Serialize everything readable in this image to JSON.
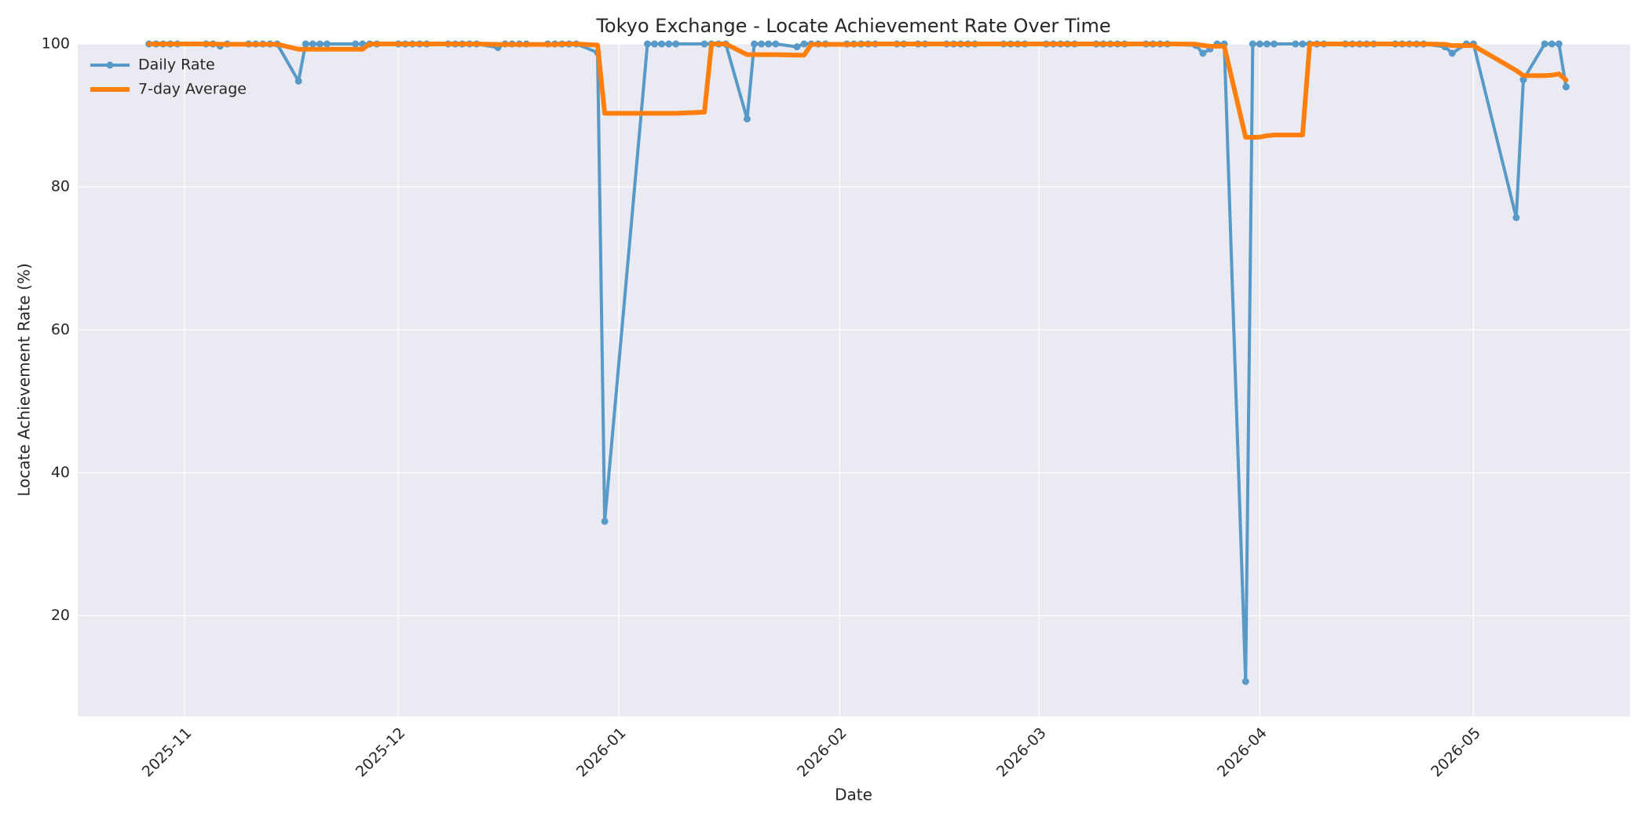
{
  "chart_data": {
    "type": "line",
    "title": "Tokyo Exchange - Locate Achievement Rate Over Time",
    "x_label": "Date",
    "y_label": "Locate Achievement Rate (%)",
    "x": [
      "2025-10-27",
      "2025-10-28",
      "2025-10-29",
      "2025-10-30",
      "2025-10-31",
      "2025-11-04",
      "2025-11-05",
      "2025-11-06",
      "2025-11-07",
      "2025-11-10",
      "2025-11-11",
      "2025-11-12",
      "2025-11-13",
      "2025-11-14",
      "2025-11-17",
      "2025-11-18",
      "2025-11-19",
      "2025-11-20",
      "2025-11-21",
      "2025-11-25",
      "2025-11-26",
      "2025-11-27",
      "2025-11-28",
      "2025-12-01",
      "2025-12-02",
      "2025-12-03",
      "2025-12-04",
      "2025-12-05",
      "2025-12-08",
      "2025-12-09",
      "2025-12-10",
      "2025-12-11",
      "2025-12-12",
      "2025-12-15",
      "2025-12-16",
      "2025-12-17",
      "2025-12-18",
      "2025-12-19",
      "2025-12-22",
      "2025-12-23",
      "2025-12-24",
      "2025-12-25",
      "2025-12-26",
      "2025-12-29",
      "2025-12-30",
      "2026-01-05",
      "2026-01-06",
      "2026-01-07",
      "2026-01-08",
      "2026-01-09",
      "2026-01-13",
      "2026-01-14",
      "2026-01-15",
      "2026-01-16",
      "2026-01-19",
      "2026-01-20",
      "2026-01-21",
      "2026-01-22",
      "2026-01-23",
      "2026-01-26",
      "2026-01-27",
      "2026-01-28",
      "2026-01-29",
      "2026-01-30",
      "2026-02-02",
      "2026-02-03",
      "2026-02-04",
      "2026-02-05",
      "2026-02-06",
      "2026-02-09",
      "2026-02-10",
      "2026-02-12",
      "2026-02-13",
      "2026-02-16",
      "2026-02-17",
      "2026-02-18",
      "2026-02-19",
      "2026-02-20",
      "2026-02-24",
      "2026-02-25",
      "2026-02-26",
      "2026-02-27",
      "2026-03-02",
      "2026-03-03",
      "2026-03-04",
      "2026-03-05",
      "2026-03-06",
      "2026-03-09",
      "2026-03-10",
      "2026-03-11",
      "2026-03-12",
      "2026-03-13",
      "2026-03-16",
      "2026-03-17",
      "2026-03-18",
      "2026-03-19",
      "2026-03-23",
      "2026-03-24",
      "2026-03-25",
      "2026-03-26",
      "2026-03-27",
      "2026-03-30",
      "2026-03-31",
      "2026-04-01",
      "2026-04-02",
      "2026-04-03",
      "2026-04-06",
      "2026-04-07",
      "2026-04-08",
      "2026-04-09",
      "2026-04-10",
      "2026-04-13",
      "2026-04-14",
      "2026-04-15",
      "2026-04-16",
      "2026-04-17",
      "2026-04-20",
      "2026-04-21",
      "2026-04-22",
      "2026-04-23",
      "2026-04-24",
      "2026-04-27",
      "2026-04-28",
      "2026-04-30",
      "2026-05-01",
      "2026-05-07",
      "2026-05-08",
      "2026-05-11",
      "2026-05-12",
      "2026-05-13",
      "2026-05-14"
    ],
    "series": [
      {
        "name": "Daily Rate",
        "color": "#5799c7",
        "markers": true,
        "values": [
          100,
          100,
          100,
          100,
          100,
          100,
          100,
          99.7,
          100,
          100,
          100,
          100,
          100,
          100,
          94.8,
          100,
          100,
          100,
          100,
          100,
          100,
          100,
          100,
          100,
          100,
          100,
          100,
          100,
          100,
          100,
          100,
          100,
          100,
          99.5,
          100,
          100,
          100,
          100,
          100,
          100,
          100,
          100,
          100,
          98.8,
          33.2,
          100,
          100,
          100,
          100,
          100,
          100,
          100,
          100,
          100,
          89.5,
          100,
          100,
          100,
          100,
          99.6,
          100,
          100,
          100,
          100,
          100,
          100,
          100,
          100,
          100,
          100,
          100,
          100,
          100,
          100,
          100,
          100,
          100,
          100,
          100,
          100,
          100,
          100,
          100,
          100,
          100,
          100,
          100,
          100,
          100,
          100,
          100,
          100,
          100,
          100,
          100,
          100,
          99.8,
          98.7,
          99.3,
          100,
          100,
          10.8,
          100,
          100,
          100,
          100,
          100,
          100,
          100,
          100,
          100,
          100,
          100,
          100,
          100,
          100,
          100,
          100,
          100,
          100,
          100,
          99.6,
          98.7,
          100,
          100,
          75.7,
          95.0,
          100,
          100,
          100,
          94.0
        ]
      },
      {
        "name": "7-day Average",
        "color": "#ff7f0e",
        "markers": false,
        "values": [
          100,
          100,
          100,
          100,
          100,
          100,
          100,
          99.96,
          99.96,
          99.96,
          99.96,
          99.96,
          99.96,
          99.96,
          99.26,
          99.26,
          99.26,
          99.26,
          99.26,
          99.26,
          99.26,
          100,
          100,
          100,
          100,
          100,
          100,
          100,
          100,
          100,
          100,
          100,
          100,
          99.93,
          99.93,
          99.93,
          99.93,
          99.93,
          99.93,
          99.93,
          100,
          100,
          100,
          99.83,
          90.29,
          90.29,
          90.29,
          90.29,
          90.29,
          90.29,
          90.46,
          100,
          100,
          100,
          98.5,
          98.5,
          98.5,
          98.5,
          98.5,
          98.44,
          98.44,
          99.94,
          99.94,
          99.94,
          99.94,
          99.94,
          100,
          100,
          100,
          100,
          100,
          100,
          100,
          100,
          100,
          100,
          100,
          100,
          100,
          100,
          100,
          100,
          100,
          100,
          100,
          100,
          100,
          100,
          100,
          100,
          100,
          100,
          100,
          100,
          100,
          100,
          99.97,
          99.79,
          99.69,
          99.69,
          99.69,
          86.94,
          86.94,
          86.97,
          87.16,
          87.26,
          87.26,
          87.26,
          100,
          100,
          100,
          100,
          100,
          100,
          100,
          100,
          100,
          100,
          100,
          100,
          100,
          99.94,
          99.76,
          99.76,
          99.76,
          96.29,
          95.57,
          95.57,
          95.63,
          95.81,
          94.96
        ]
      }
    ],
    "xlim": [
      "2025-10-17",
      "2026-05-23"
    ],
    "xticks": [
      "2025-11",
      "2025-12",
      "2026-01",
      "2026-02",
      "2026-03",
      "2026-04",
      "2026-05"
    ],
    "ylim": [
      5.9,
      100
    ],
    "yticks": [
      20,
      40,
      60,
      80,
      100
    ],
    "grid": true,
    "legend": "upper left"
  }
}
